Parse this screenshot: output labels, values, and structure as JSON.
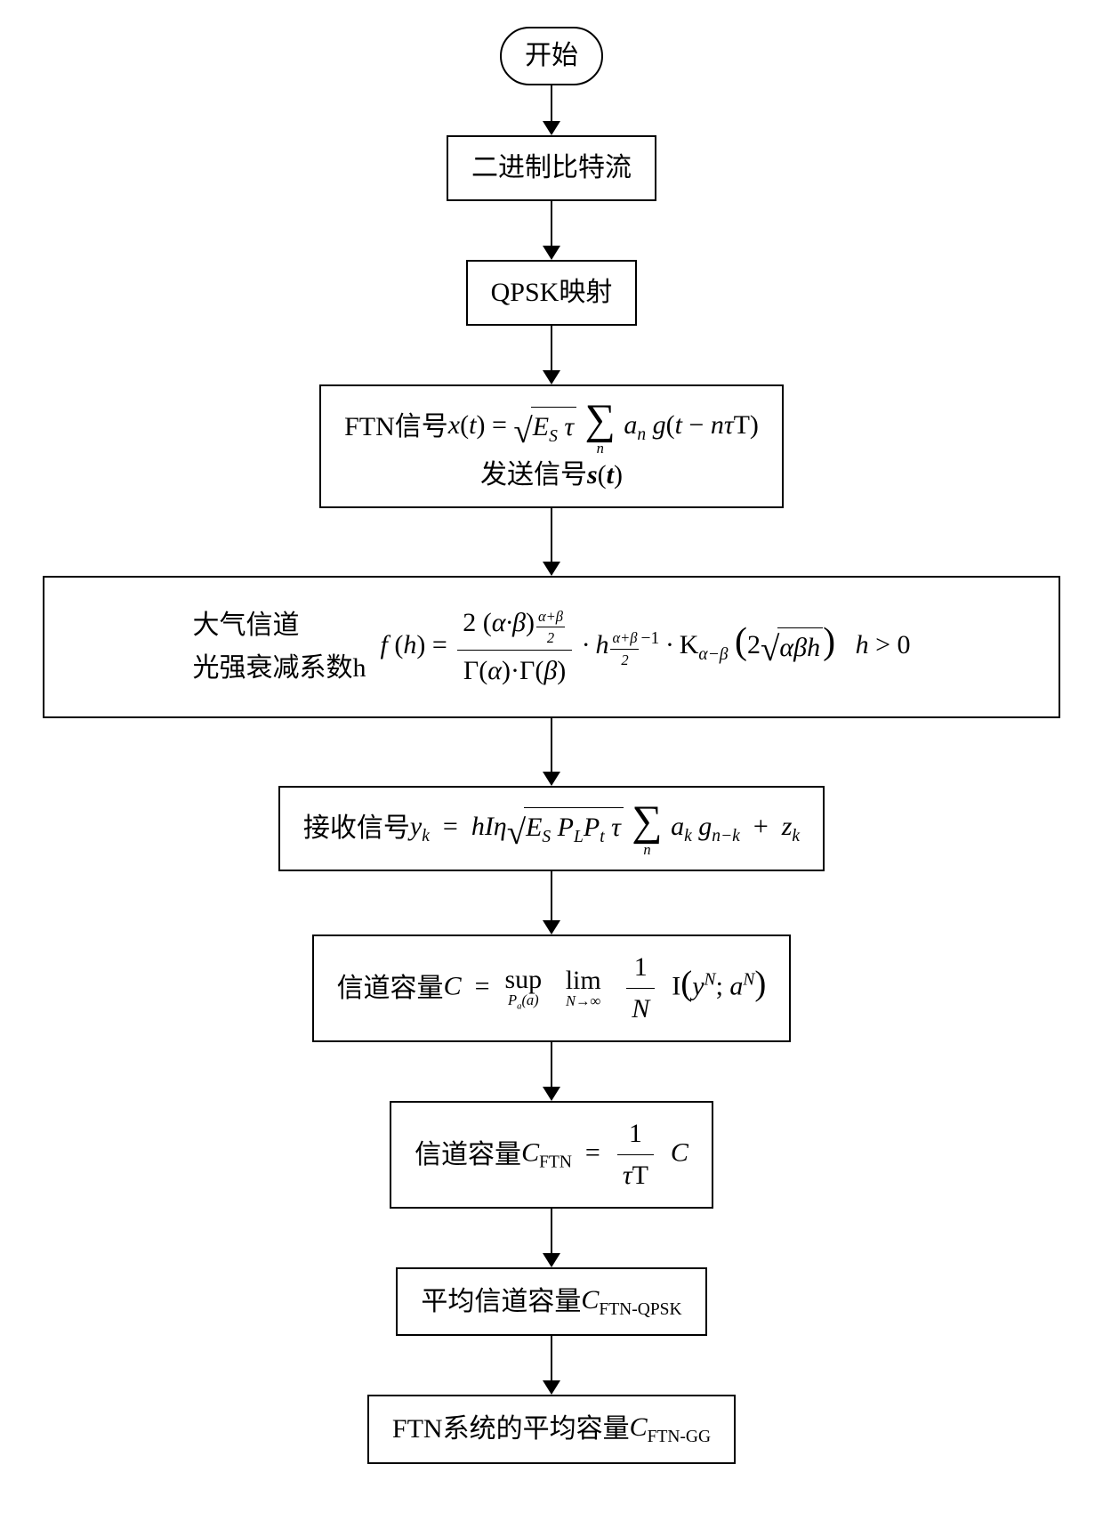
{
  "diagram": {
    "type": "flowchart",
    "direction": "top-to-bottom",
    "background_color": "#ffffff",
    "node_border_color": "#000000",
    "node_border_width": 2,
    "arrow_color": "#000000",
    "arrow_head_size": 16,
    "font_family": "Times New Roman",
    "base_font_size": 30,
    "nodes": [
      {
        "id": "n0",
        "shape": "rounded",
        "label": "开始"
      },
      {
        "id": "n1",
        "shape": "rect",
        "label": "二进制比特流"
      },
      {
        "id": "n2",
        "shape": "rect",
        "label": "QPSK映射"
      },
      {
        "id": "n3",
        "shape": "rect",
        "line1_prefix": "FTN信号",
        "line2_prefix": "发送信号",
        "formula_latex": "x(t) = \\sqrt{E_S \\tau} \\sum_n a_n g(t - n\\tau T)",
        "line2_formula_latex": "s(t)"
      },
      {
        "id": "n4",
        "shape": "rect",
        "wide": true,
        "label_line1": "大气信道",
        "label_line2": "光强衰减系数h",
        "formula_latex": "f(h) = \\frac{2(\\alpha\\cdot\\beta)^{\\frac{\\alpha+\\beta}{2}}}{\\Gamma(\\alpha)\\cdot\\Gamma(\\beta)} \\cdot h^{\\frac{\\alpha+\\beta}{2}-1} \\cdot K_{\\alpha-\\beta}\\left(2\\sqrt{\\alpha\\beta h}\\right)\\ \\ h>0"
      },
      {
        "id": "n5",
        "shape": "rect",
        "prefix": "接收信号",
        "formula_latex": "y_k = hI\\eta\\sqrt{E_S P_L P_t \\tau} \\sum_n a_k g_{n-k} + z_k"
      },
      {
        "id": "n6",
        "shape": "rect",
        "prefix": "信道容量",
        "formula_latex": "C = \\sup_{P_a(a)} \\lim_{N\\to\\infty} \\frac{1}{N} I\\left(y^N; a^N\\right)"
      },
      {
        "id": "n7",
        "shape": "rect",
        "prefix": "信道容量",
        "formula_latex": "C_{FTN} = \\frac{1}{\\tau T} C"
      },
      {
        "id": "n8",
        "shape": "rect",
        "prefix": "平均信道容量",
        "formula_latex": "C_{FTN-QPSK}"
      },
      {
        "id": "n9",
        "shape": "rect",
        "prefix": "FTN系统的平均容量 ",
        "formula_latex": "C_{FTN-GG}"
      }
    ],
    "edges": [
      {
        "from": "n0",
        "to": "n1",
        "len": 40
      },
      {
        "from": "n1",
        "to": "n2",
        "len": 50
      },
      {
        "from": "n2",
        "to": "n3",
        "len": 50
      },
      {
        "from": "n3",
        "to": "n4",
        "len": 60
      },
      {
        "from": "n4",
        "to": "n5",
        "len": 60
      },
      {
        "from": "n5",
        "to": "n6",
        "len": 55
      },
      {
        "from": "n6",
        "to": "n7",
        "len": 50
      },
      {
        "from": "n7",
        "to": "n8",
        "len": 50
      },
      {
        "from": "n8",
        "to": "n9",
        "len": 50
      }
    ]
  }
}
